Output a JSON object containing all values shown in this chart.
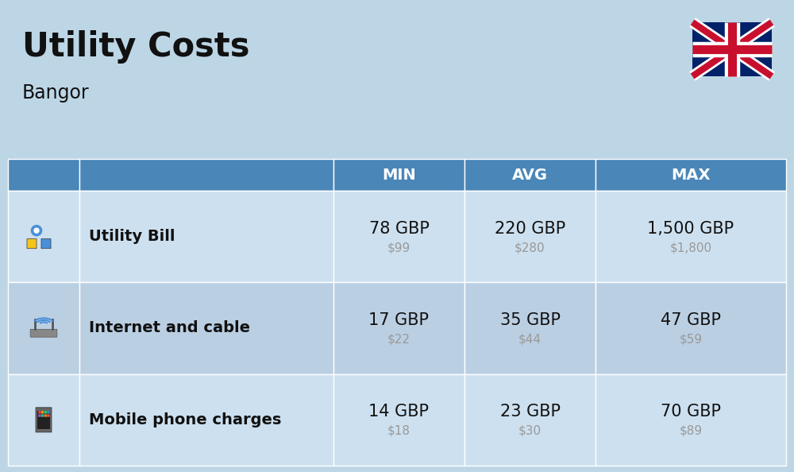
{
  "title": "Utility Costs",
  "subtitle": "Bangor",
  "background_color": "#bdd6e6",
  "header_bg_color": "#4a86b8",
  "header_text_color": "#ffffff",
  "row_bg_color_1": "#cde0ef",
  "row_bg_color_2": "#bbcfe3",
  "title_color": "#111111",
  "subtitle_color": "#111111",
  "label_color": "#111111",
  "value_color": "#111111",
  "subvalue_color": "#999999",
  "rows": [
    {
      "label": "Utility Bill",
      "min_gbp": "78 GBP",
      "min_usd": "$99",
      "avg_gbp": "220 GBP",
      "avg_usd": "$280",
      "max_gbp": "1,500 GBP",
      "max_usd": "$1,800"
    },
    {
      "label": "Internet and cable",
      "min_gbp": "17 GBP",
      "min_usd": "$22",
      "avg_gbp": "35 GBP",
      "avg_usd": "$44",
      "max_gbp": "47 GBP",
      "max_usd": "$59"
    },
    {
      "label": "Mobile phone charges",
      "min_gbp": "14 GBP",
      "min_usd": "$18",
      "avg_gbp": "23 GBP",
      "avg_usd": "$30",
      "max_gbp": "70 GBP",
      "max_usd": "$89"
    }
  ],
  "title_fontsize": 30,
  "subtitle_fontsize": 17,
  "header_fontsize": 14,
  "label_fontsize": 14,
  "value_fontsize": 15,
  "subvalue_fontsize": 11
}
